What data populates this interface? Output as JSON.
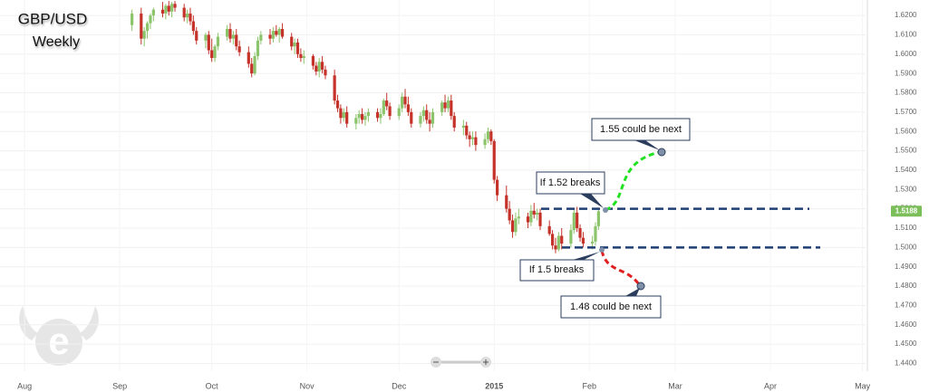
{
  "chart_data": {
    "type": "candlestick",
    "title": "GBP/USD",
    "subtitle": "Weekly",
    "xlim": [
      -8,
      274
    ],
    "xticks": [
      {
        "value": 0,
        "label": "Aug"
      },
      {
        "value": 31,
        "label": "Sep"
      },
      {
        "value": 61,
        "label": "Oct"
      },
      {
        "value": 92,
        "label": "Nov"
      },
      {
        "value": 122,
        "label": "Dec"
      },
      {
        "value": 153,
        "label": "2015"
      },
      {
        "value": 184,
        "label": "Feb"
      },
      {
        "value": 212,
        "label": "Mar"
      },
      {
        "value": 243,
        "label": "Apr"
      },
      {
        "value": 273,
        "label": "May"
      }
    ],
    "ylim": [
      1.436,
      1.628
    ],
    "yticks": [
      {
        "value": 1.44,
        "label": "1.4400"
      },
      {
        "value": 1.45,
        "label": "1.4500"
      },
      {
        "value": 1.46,
        "label": "1.4600"
      },
      {
        "value": 1.47,
        "label": "1.4700"
      },
      {
        "value": 1.48,
        "label": "1.4800"
      },
      {
        "value": 1.49,
        "label": "1.4900"
      },
      {
        "value": 1.5,
        "label": "1.5000"
      },
      {
        "value": 1.51,
        "label": "1.5100"
      },
      {
        "value": 1.52,
        "label": "1.5200"
      },
      {
        "value": 1.53,
        "label": "1.5300"
      },
      {
        "value": 1.54,
        "label": "1.5400"
      },
      {
        "value": 1.55,
        "label": "1.5500"
      },
      {
        "value": 1.56,
        "label": "1.5600"
      },
      {
        "value": 1.57,
        "label": "1.5700"
      },
      {
        "value": 1.58,
        "label": "1.5800"
      },
      {
        "value": 1.59,
        "label": "1.5900"
      },
      {
        "value": 1.6,
        "label": "1.6000"
      },
      {
        "value": 1.61,
        "label": "1.6100"
      },
      {
        "value": 1.62,
        "label": "1.6200"
      }
    ],
    "grid": true,
    "up_color": "#8cc46c",
    "down_color": "#c4322a",
    "x": [
      35,
      38,
      39,
      40,
      41,
      42,
      45,
      46,
      47,
      48,
      49,
      52,
      53,
      54,
      55,
      56,
      59,
      60,
      61,
      62,
      63,
      66,
      67,
      68,
      69,
      70,
      73,
      74,
      75,
      76,
      77,
      80,
      81,
      82,
      83,
      84,
      87,
      88,
      89,
      90,
      91,
      94,
      95,
      96,
      97,
      98,
      101,
      102,
      103,
      104,
      105,
      108,
      109,
      110,
      111,
      112,
      115,
      116,
      117,
      118,
      119,
      122,
      123,
      124,
      125,
      126,
      129,
      130,
      131,
      132,
      133,
      136,
      137,
      138,
      139,
      140,
      143,
      144,
      145,
      146,
      147,
      150,
      151,
      152,
      153,
      154,
      157,
      158,
      159,
      160,
      161,
      164,
      165,
      166,
      167,
      168,
      171,
      172,
      173,
      174,
      175,
      178,
      179,
      180,
      181,
      182,
      185,
      186,
      187
    ],
    "open": [
      1.615,
      1.621,
      1.608,
      1.612,
      1.616,
      1.62,
      1.623,
      1.621,
      1.625,
      1.622,
      1.626,
      1.624,
      1.619,
      1.621,
      1.617,
      1.612,
      1.607,
      1.61,
      1.602,
      1.598,
      1.604,
      1.609,
      1.613,
      1.608,
      1.61,
      1.604,
      1.601,
      1.595,
      1.59,
      1.599,
      1.607,
      1.61,
      1.608,
      1.612,
      1.61,
      1.613,
      1.609,
      1.604,
      1.606,
      1.6,
      1.598,
      1.599,
      1.594,
      1.591,
      1.596,
      1.592,
      1.589,
      1.576,
      1.572,
      1.567,
      1.57,
      1.564,
      1.567,
      1.569,
      1.566,
      1.568,
      1.57,
      1.567,
      1.569,
      1.576,
      1.573,
      1.568,
      1.572,
      1.578,
      1.574,
      1.57,
      1.564,
      1.568,
      1.571,
      1.566,
      1.564,
      1.57,
      1.575,
      1.572,
      1.576,
      1.568,
      1.562,
      1.563,
      1.558,
      1.556,
      1.557,
      1.553,
      1.556,
      1.56,
      1.555,
      1.535,
      1.527,
      1.52,
      1.514,
      1.508,
      1.515,
      1.516,
      1.513,
      1.519,
      1.517,
      1.518,
      1.511,
      1.507,
      1.501,
      1.499,
      1.506,
      1.502,
      1.509,
      1.518,
      1.51,
      1.505,
      1.502,
      1.503,
      1.511
    ],
    "high": [
      1.623,
      1.624,
      1.614,
      1.617,
      1.621,
      1.624,
      1.627,
      1.626,
      1.6275,
      1.627,
      1.6275,
      1.626,
      1.623,
      1.624,
      1.62,
      1.614,
      1.611,
      1.612,
      1.608,
      1.605,
      1.611,
      1.615,
      1.616,
      1.612,
      1.613,
      1.607,
      1.604,
      1.598,
      1.601,
      1.609,
      1.612,
      1.613,
      1.614,
      1.615,
      1.614,
      1.616,
      1.611,
      1.608,
      1.608,
      1.603,
      1.602,
      1.6,
      1.596,
      1.598,
      1.599,
      1.594,
      1.592,
      1.579,
      1.574,
      1.572,
      1.573,
      1.569,
      1.571,
      1.572,
      1.57,
      1.572,
      1.572,
      1.572,
      1.577,
      1.58,
      1.575,
      1.574,
      1.58,
      1.582,
      1.578,
      1.572,
      1.57,
      1.573,
      1.574,
      1.57,
      1.572,
      1.576,
      1.579,
      1.578,
      1.579,
      1.57,
      1.566,
      1.565,
      1.56,
      1.56,
      1.56,
      1.559,
      1.562,
      1.561,
      1.556,
      1.537,
      1.532,
      1.524,
      1.517,
      1.518,
      1.52,
      1.518,
      1.522,
      1.523,
      1.52,
      1.52,
      1.514,
      1.509,
      1.505,
      1.508,
      1.51,
      1.512,
      1.52,
      1.521,
      1.512,
      1.508,
      1.506,
      1.513,
      1.52
    ],
    "low": [
      1.612,
      1.605,
      1.604,
      1.608,
      1.613,
      1.617,
      1.619,
      1.618,
      1.62,
      1.619,
      1.622,
      1.617,
      1.616,
      1.615,
      1.61,
      1.605,
      1.603,
      1.6,
      1.596,
      1.596,
      1.602,
      1.607,
      1.606,
      1.605,
      1.602,
      1.599,
      1.593,
      1.588,
      1.589,
      1.597,
      1.605,
      1.605,
      1.606,
      1.609,
      1.606,
      1.608,
      1.602,
      1.6,
      1.598,
      1.596,
      1.595,
      1.592,
      1.589,
      1.588,
      1.59,
      1.587,
      1.574,
      1.57,
      1.564,
      1.565,
      1.562,
      1.561,
      1.564,
      1.564,
      1.563,
      1.565,
      1.565,
      1.564,
      1.568,
      1.571,
      1.566,
      1.566,
      1.57,
      1.572,
      1.568,
      1.562,
      1.562,
      1.565,
      1.564,
      1.56,
      1.562,
      1.568,
      1.57,
      1.57,
      1.566,
      1.56,
      1.558,
      1.556,
      1.552,
      1.553,
      1.55,
      1.551,
      1.554,
      1.553,
      1.533,
      1.524,
      1.518,
      1.512,
      1.505,
      1.506,
      1.512,
      1.51,
      1.511,
      1.515,
      1.514,
      1.509,
      1.506,
      1.499,
      1.497,
      1.498,
      1.499,
      1.5,
      1.507,
      1.508,
      1.503,
      1.5,
      1.499,
      1.501,
      1.509
    ],
    "close": [
      1.621,
      1.608,
      1.612,
      1.616,
      1.62,
      1.623,
      1.621,
      1.625,
      1.622,
      1.626,
      1.624,
      1.619,
      1.621,
      1.617,
      1.612,
      1.607,
      1.61,
      1.602,
      1.598,
      1.604,
      1.609,
      1.613,
      1.608,
      1.61,
      1.604,
      1.601,
      1.595,
      1.59,
      1.599,
      1.607,
      1.61,
      1.608,
      1.612,
      1.61,
      1.613,
      1.609,
      1.604,
      1.606,
      1.6,
      1.598,
      1.599,
      1.594,
      1.591,
      1.596,
      1.592,
      1.589,
      1.576,
      1.572,
      1.567,
      1.57,
      1.564,
      1.567,
      1.569,
      1.566,
      1.568,
      1.57,
      1.567,
      1.569,
      1.576,
      1.573,
      1.568,
      1.572,
      1.578,
      1.574,
      1.57,
      1.564,
      1.568,
      1.571,
      1.566,
      1.564,
      1.57,
      1.575,
      1.572,
      1.576,
      1.568,
      1.562,
      1.563,
      1.558,
      1.556,
      1.557,
      1.553,
      1.556,
      1.56,
      1.555,
      1.535,
      1.527,
      1.52,
      1.514,
      1.508,
      1.515,
      1.516,
      1.513,
      1.519,
      1.517,
      1.518,
      1.511,
      1.507,
      1.501,
      1.499,
      1.506,
      1.502,
      1.509,
      1.518,
      1.51,
      1.505,
      1.502,
      1.503,
      1.511,
      1.5188
    ],
    "last_price": 1.5188,
    "last_price_color": "#7cbf5a",
    "levels": [
      1.52,
      1.5
    ],
    "level_color": "#1f3f73",
    "annotations": [
      "1.55 could be next",
      "If 1.52 breaks",
      "If 1.5 breaks",
      "1.48 could be next"
    ]
  }
}
